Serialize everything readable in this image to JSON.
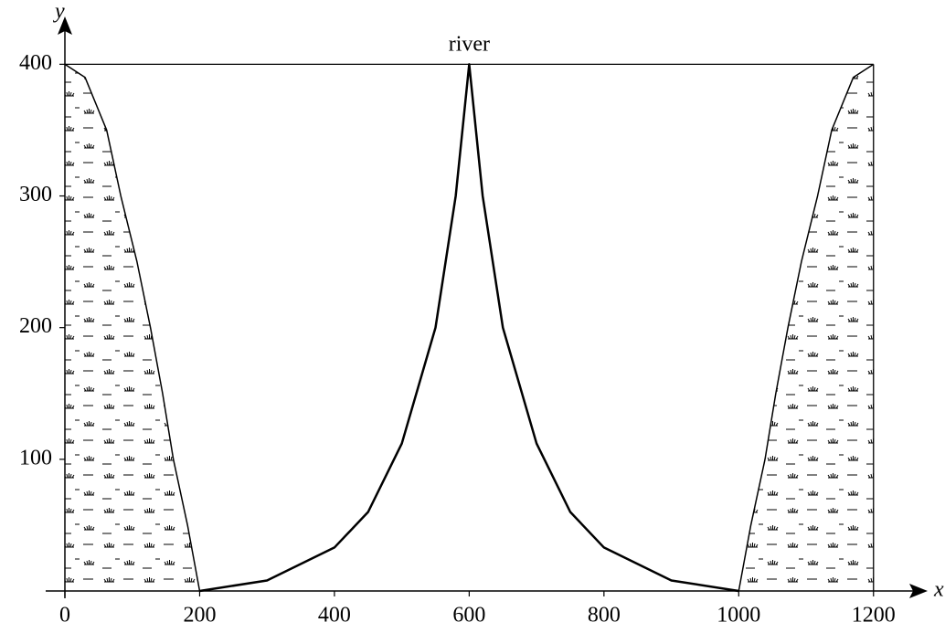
{
  "chart_data": {
    "type": "line",
    "xlabel": "x",
    "ylabel": "y",
    "annotation": "river",
    "xlim": [
      0,
      1260
    ],
    "ylim": [
      0,
      428
    ],
    "xticks": [
      0,
      200,
      400,
      600,
      800,
      1000,
      1200
    ],
    "yticks": [
      100,
      200,
      300,
      400
    ],
    "series": [
      {
        "color": "#000000",
        "fill": "pattern",
        "x": [
          0,
          30,
          62,
          83,
          107,
          127,
          145,
          161,
          182,
          200
        ],
        "values": [
          400,
          390,
          350,
          300,
          250,
          200,
          150,
          100,
          50,
          0
        ]
      },
      {
        "color": "#000000",
        "x": [
          200,
          300,
          400,
          450,
          500,
          550,
          580,
          590,
          600,
          610,
          620,
          650,
          700,
          750,
          800,
          900,
          1000
        ],
        "values": [
          0,
          8,
          33,
          60,
          112,
          200,
          300,
          350,
          400,
          350,
          300,
          200,
          112,
          60,
          33,
          8,
          0
        ]
      },
      {
        "color": "#000000",
        "fill": "pattern",
        "x": [
          1000,
          1018,
          1039,
          1055,
          1073,
          1093,
          1117,
          1138,
          1170,
          1200
        ],
        "values": [
          0,
          50,
          100,
          150,
          200,
          250,
          300,
          350,
          390,
          400
        ]
      }
    ]
  }
}
